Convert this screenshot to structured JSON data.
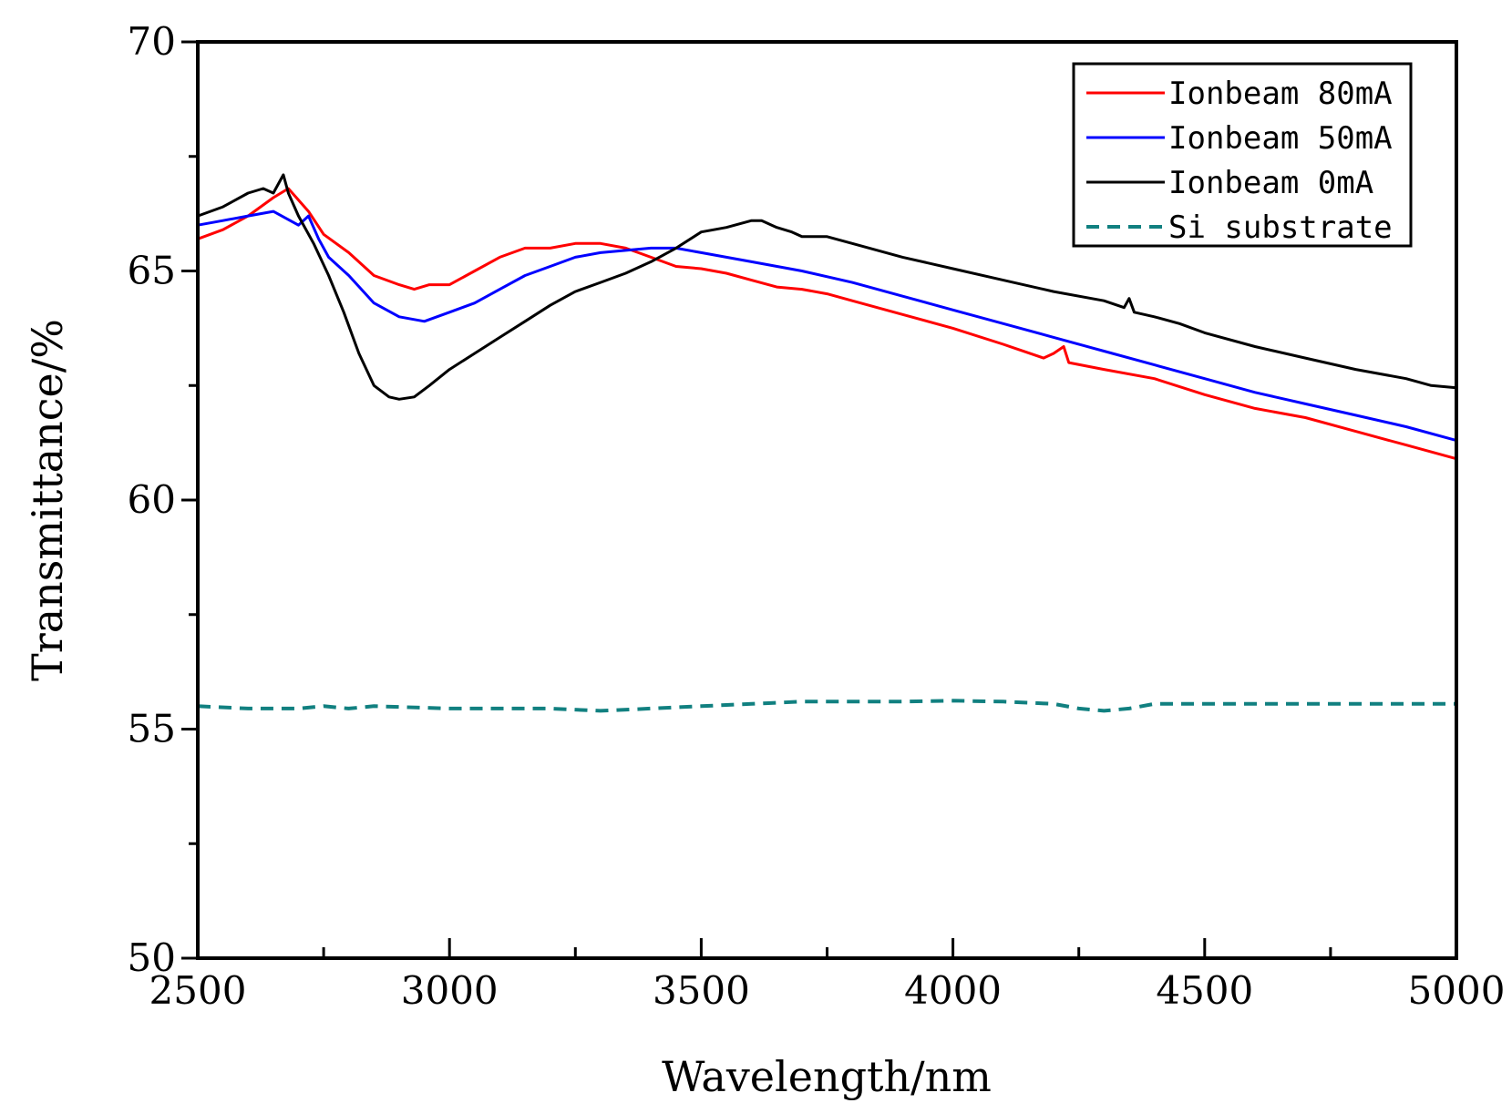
{
  "chart_data": {
    "type": "line",
    "title": "",
    "xlabel": "Wavelength/nm",
    "ylabel": "Transmittance/%",
    "xlim": [
      2500,
      5000
    ],
    "ylim": [
      50,
      70
    ],
    "x_ticks": [
      2500,
      3000,
      3500,
      4000,
      4500,
      5000
    ],
    "y_ticks": [
      50,
      55,
      60,
      65,
      70
    ],
    "x_tick_labels": [
      "2500",
      "3000",
      "3500",
      "4000",
      "4500",
      "5000"
    ],
    "y_tick_labels": [
      "50",
      "55",
      "60",
      "65",
      "70"
    ],
    "legend_position": "top-right",
    "series": [
      {
        "name": "Ionbeam 80mA",
        "color": "#ff0000",
        "dash": "solid",
        "x": [
          2500,
          2550,
          2600,
          2650,
          2680,
          2720,
          2750,
          2800,
          2850,
          2900,
          2930,
          2960,
          3000,
          3050,
          3100,
          3150,
          3200,
          3250,
          3300,
          3350,
          3400,
          3450,
          3500,
          3550,
          3600,
          3650,
          3700,
          3750,
          3800,
          3900,
          4000,
          4100,
          4180,
          4200,
          4220,
          4230,
          4300,
          4400,
          4500,
          4600,
          4700,
          4800,
          4900,
          5000
        ],
        "y": [
          65.7,
          65.9,
          66.2,
          66.6,
          66.8,
          66.3,
          65.8,
          65.4,
          64.9,
          64.7,
          64.6,
          64.7,
          64.7,
          65.0,
          65.3,
          65.5,
          65.5,
          65.6,
          65.6,
          65.5,
          65.3,
          65.1,
          65.05,
          64.95,
          64.8,
          64.65,
          64.6,
          64.5,
          64.35,
          64.05,
          63.75,
          63.4,
          63.1,
          63.2,
          63.35,
          63.0,
          62.85,
          62.65,
          62.3,
          62.0,
          61.8,
          61.5,
          61.2,
          60.9
        ]
      },
      {
        "name": "Ionbeam 50mA",
        "color": "#0000ff",
        "dash": "solid",
        "x": [
          2500,
          2550,
          2600,
          2650,
          2700,
          2720,
          2740,
          2760,
          2800,
          2850,
          2900,
          2950,
          3000,
          3050,
          3100,
          3150,
          3200,
          3250,
          3300,
          3350,
          3400,
          3450,
          3500,
          3600,
          3700,
          3800,
          3900,
          4000,
          4100,
          4200,
          4300,
          4400,
          4500,
          4600,
          4700,
          4800,
          4900,
          5000
        ],
        "y": [
          66.0,
          66.1,
          66.2,
          66.3,
          66.0,
          66.2,
          65.7,
          65.3,
          64.9,
          64.3,
          64.0,
          63.9,
          64.1,
          64.3,
          64.6,
          64.9,
          65.1,
          65.3,
          65.4,
          65.45,
          65.5,
          65.5,
          65.4,
          65.2,
          65.0,
          64.75,
          64.45,
          64.15,
          63.85,
          63.55,
          63.25,
          62.95,
          62.65,
          62.35,
          62.1,
          61.85,
          61.6,
          61.3
        ]
      },
      {
        "name": "Ionbeam 0mA",
        "color": "#000000",
        "dash": "solid",
        "x": [
          2500,
          2550,
          2600,
          2630,
          2650,
          2670,
          2680,
          2700,
          2730,
          2760,
          2790,
          2820,
          2850,
          2880,
          2900,
          2930,
          2960,
          3000,
          3050,
          3100,
          3150,
          3200,
          3250,
          3300,
          3350,
          3400,
          3450,
          3500,
          3550,
          3600,
          3620,
          3650,
          3680,
          3700,
          3750,
          3800,
          3900,
          4000,
          4100,
          4200,
          4300,
          4340,
          4350,
          4360,
          4400,
          4450,
          4500,
          4600,
          4700,
          4800,
          4900,
          4950,
          5000
        ],
        "y": [
          66.2,
          66.4,
          66.7,
          66.8,
          66.7,
          67.1,
          66.7,
          66.2,
          65.6,
          64.9,
          64.1,
          63.2,
          62.5,
          62.25,
          62.2,
          62.25,
          62.5,
          62.85,
          63.2,
          63.55,
          63.9,
          64.25,
          64.55,
          64.75,
          64.95,
          65.2,
          65.5,
          65.85,
          65.95,
          66.1,
          66.1,
          65.95,
          65.85,
          65.75,
          65.75,
          65.6,
          65.3,
          65.05,
          64.8,
          64.55,
          64.35,
          64.2,
          64.4,
          64.1,
          64.0,
          63.85,
          63.65,
          63.35,
          63.1,
          62.85,
          62.65,
          62.5,
          62.45
        ]
      },
      {
        "name": "Si substrate",
        "color": "#118080",
        "dash": "dashed",
        "x": [
          2500,
          2600,
          2700,
          2750,
          2800,
          2850,
          3000,
          3100,
          3200,
          3300,
          3400,
          3500,
          3600,
          3700,
          3800,
          3900,
          4000,
          4100,
          4200,
          4250,
          4300,
          4350,
          4400,
          4500,
          4600,
          4700,
          4800,
          4900,
          5000
        ],
        "y": [
          55.5,
          55.45,
          55.45,
          55.5,
          55.45,
          55.5,
          55.45,
          55.45,
          55.45,
          55.4,
          55.45,
          55.5,
          55.55,
          55.6,
          55.6,
          55.6,
          55.62,
          55.6,
          55.55,
          55.45,
          55.4,
          55.45,
          55.55,
          55.55,
          55.55,
          55.55,
          55.55,
          55.55,
          55.55
        ]
      }
    ]
  }
}
